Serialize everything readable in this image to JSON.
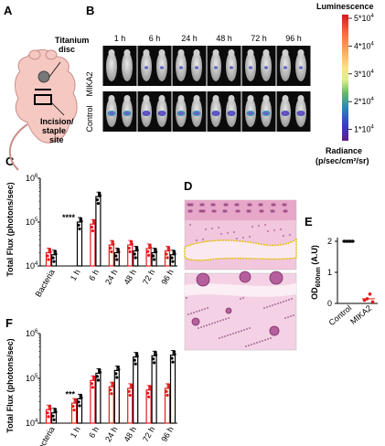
{
  "panels": {
    "a": "A",
    "b": "B",
    "c": "C",
    "d": "D",
    "e": "E",
    "f": "F"
  },
  "panel_a": {
    "disc_label": "Titanium disc",
    "incision_label": "Incision/ staple site"
  },
  "panel_b": {
    "timepoints": [
      "1 h",
      "6 h",
      "24 h",
      "48 h",
      "72 h",
      "96 h"
    ],
    "rows": [
      "MIKA2",
      "Control"
    ],
    "scale_title": "Luminescence",
    "scale_ticks": [
      "5*10",
      "4*10",
      "3*10",
      "2*10",
      "1*10"
    ],
    "scale_exp": "4",
    "radiance_label": "Radiance",
    "radiance_units": "(p/sec/cm²/sr)",
    "scale_colors": [
      "#d7191c",
      "#f46d43",
      "#fdae61",
      "#fee08b",
      "#ffffbf",
      "#a6d96a",
      "#1a9641",
      "#2b83ba",
      "#3a3dbd",
      "#6a1b9a"
    ]
  },
  "chart_data": [
    {
      "type": "bar",
      "panel": "C",
      "ylabel": "Total Flux (photons/sec)",
      "yscale": "log",
      "ylim": [
        10000,
        1000000
      ],
      "yticks": [
        "10",
        "10",
        "10"
      ],
      "ytick_exps": [
        "4",
        "5",
        "6"
      ],
      "categories": [
        "Bacteria",
        "1 h",
        "6 h",
        "24 h",
        "48 h",
        "72 h",
        "96 h"
      ],
      "series": [
        {
          "color": "#e41a1c",
          "values": [
            20000,
            null,
            90000,
            30000,
            30000,
            25000,
            22000
          ]
        },
        {
          "color": "#000000",
          "values": [
            18000,
            100000,
            380000,
            20000,
            22000,
            20000,
            18000
          ]
        }
      ],
      "significance": "****",
      "significance_at": "1 h"
    },
    {
      "type": "bar",
      "panel": "F",
      "ylabel": "Total Flux (photons/sec)",
      "yscale": "log",
      "ylim": [
        10000,
        1000000
      ],
      "yticks": [
        "10",
        "10",
        "10"
      ],
      "ytick_exps": [
        "4",
        "5",
        "6"
      ],
      "categories": [
        "Bacteria",
        "1 h",
        "6 h",
        "24 h",
        "48 h",
        "72 h",
        "96 h"
      ],
      "series": [
        {
          "color": "#e41a1c",
          "values": [
            20000,
            28000,
            90000,
            65000,
            60000,
            55000,
            60000
          ]
        },
        {
          "color": "#000000",
          "values": [
            17000,
            35000,
            130000,
            150000,
            300000,
            320000,
            330000
          ]
        }
      ],
      "significance": "***",
      "significance_at": "1 h"
    },
    {
      "type": "scatter",
      "panel": "E",
      "ylabel": "OD600nm (A.U)",
      "ylabel_main": "OD",
      "ylabel_sub": "600nm",
      "ylabel_tail": " (A.U)",
      "ylim": [
        0,
        2
      ],
      "yticks": [
        "0",
        "1",
        "2"
      ],
      "categories": [
        "Control",
        "MIKA2"
      ],
      "values": [
        [
          2.0,
          2.0,
          2.0,
          2.0
        ],
        [
          0.1,
          0.15,
          0.3,
          0.05
        ]
      ],
      "colors": [
        "#000000",
        "#e41a1c"
      ]
    }
  ]
}
